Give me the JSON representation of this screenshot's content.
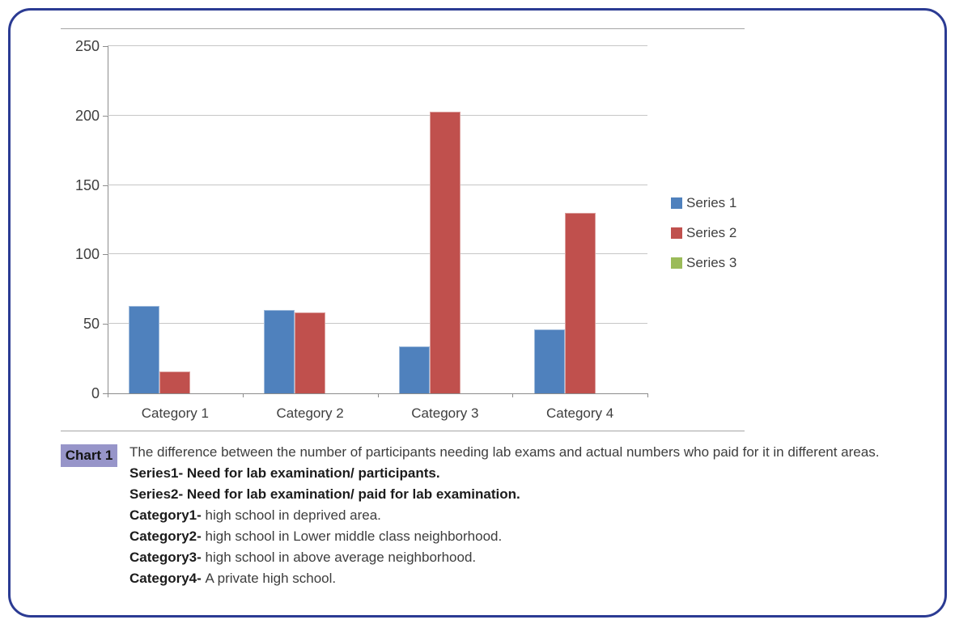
{
  "frame": {
    "border_color": "#2b3b93"
  },
  "chart_data": {
    "type": "bar",
    "title": "",
    "xlabel": "",
    "ylabel": "",
    "categories": [
      "Category 1",
      "Category 2",
      "Category 3",
      "Category 4"
    ],
    "series": [
      {
        "name": "Series 1",
        "color": "#4F81BD",
        "values": [
          63,
          60,
          34,
          46
        ]
      },
      {
        "name": "Series 2",
        "color": "#C0504D",
        "values": [
          16,
          58,
          203,
          130
        ]
      },
      {
        "name": "Series 3",
        "color": "#9BBB59",
        "values": [
          0,
          0,
          0,
          0
        ]
      }
    ],
    "ylim": [
      0,
      250
    ],
    "yticks": [
      0,
      50,
      100,
      150,
      200,
      250
    ],
    "grid": true,
    "legend_position": "right"
  },
  "caption": {
    "chip_label": "Chart 1",
    "chip_color": "#9795C9",
    "paragraphs": [
      {
        "segments": [
          {
            "text": "The difference between the number of participants needing lab exams and actual numbers who paid for it in different areas. ",
            "bold": false
          },
          {
            "text": "Series1- Need for lab examination/ participants.",
            "bold": true
          }
        ]
      },
      {
        "segments": [
          {
            "text": "Series2- Need for lab examination/ paid for lab examination.",
            "bold": true
          }
        ]
      },
      {
        "segments": [
          {
            "text": "Category1- ",
            "bold": true
          },
          {
            "text": "high school in deprived area.",
            "bold": false
          }
        ]
      },
      {
        "segments": [
          {
            "text": "Category2- ",
            "bold": true
          },
          {
            "text": "high school in Lower middle class neighborhood.",
            "bold": false
          }
        ]
      },
      {
        "segments": [
          {
            "text": "Category3- ",
            "bold": true
          },
          {
            "text": "high school in above average neighborhood.",
            "bold": false
          }
        ]
      },
      {
        "segments": [
          {
            "text": "Category4- ",
            "bold": true
          },
          {
            "text": "A private high school.",
            "bold": false
          }
        ]
      }
    ]
  }
}
